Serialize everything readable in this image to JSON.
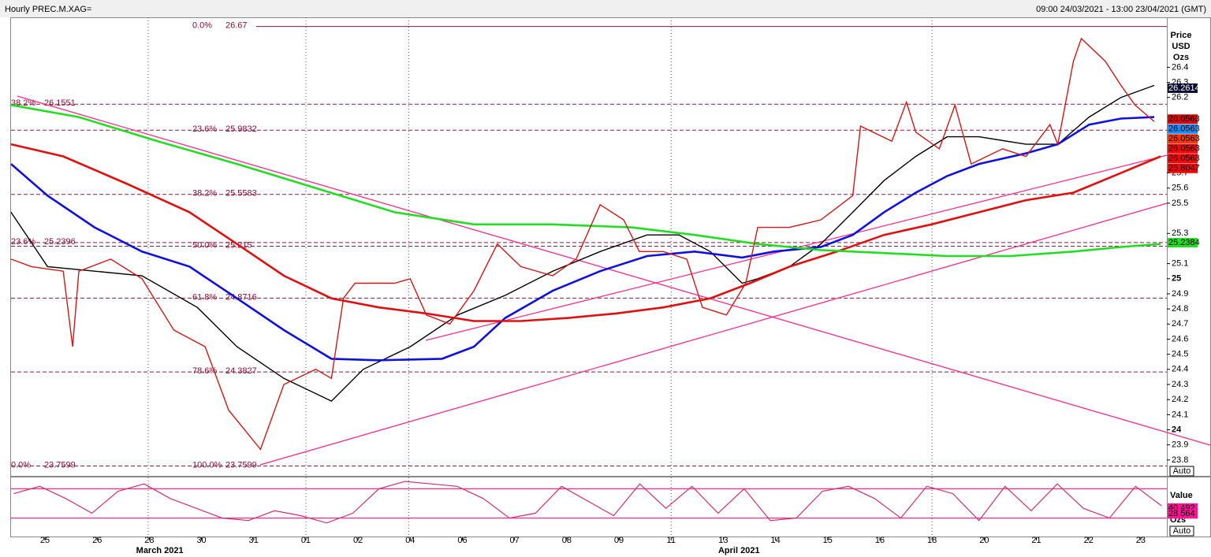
{
  "chart_data": {
    "type": "line",
    "title": "Hourly PREC.M.XAG=",
    "subtitle": "09:00 24/03/2021 - 13:00 23/04/2021 (GMT)",
    "y_axis_label": [
      "Price",
      "USD",
      "Ozs"
    ],
    "auto_label": "Auto",
    "xlim": [
      -0.65,
      21.5
    ],
    "ylim": [
      23.695,
      26.72
    ],
    "yticks": [
      26.4,
      26.3,
      26.2,
      25.7,
      25.6,
      25.5,
      25.3,
      25.1,
      25,
      24.9,
      24.8,
      24.7,
      24.6,
      24.5,
      24.4,
      24.3,
      24.2,
      24.1,
      24,
      23.9,
      23.8
    ],
    "xticks": [
      {
        "value": 0,
        "label": "25"
      },
      {
        "value": 1,
        "label": "26"
      },
      {
        "value": 2,
        "label": "28"
      },
      {
        "value": 3,
        "label": "30"
      },
      {
        "value": 4,
        "label": "31"
      },
      {
        "value": 5,
        "label": "01"
      },
      {
        "value": 6,
        "label": "02"
      },
      {
        "value": 7,
        "label": "04"
      },
      {
        "value": 8,
        "label": "06"
      },
      {
        "value": 9,
        "label": "07"
      },
      {
        "value": 10,
        "label": "08"
      },
      {
        "value": 11,
        "label": "09"
      },
      {
        "value": 12,
        "label": "11"
      },
      {
        "value": 13,
        "label": "13"
      },
      {
        "value": 14,
        "label": "14"
      },
      {
        "value": 15,
        "label": "15"
      },
      {
        "value": 16,
        "label": "16"
      },
      {
        "value": 17,
        "label": "18"
      },
      {
        "value": 18,
        "label": "20"
      },
      {
        "value": 19,
        "label": "21"
      },
      {
        "value": 20,
        "label": "22"
      },
      {
        "value": 21,
        "label": "23"
      }
    ],
    "month_labels": [
      {
        "value": 2.2,
        "label": "March 2021"
      },
      {
        "value": 13.3,
        "label": "April 2021"
      }
    ],
    "xgrid": [
      1.98,
      5,
      6.97,
      12,
      17
    ],
    "fib_levels_a": [
      {
        "pct": "0.0%",
        "value": 26.67
      },
      {
        "pct": "23.6%",
        "value": 25.9832
      },
      {
        "pct": "38.2%",
        "value": 25.5583
      },
      {
        "pct": "50.0%",
        "value": 25.215
      },
      {
        "pct": "61.8%",
        "value": 24.8716
      },
      {
        "pct": "78.6%",
        "value": 24.3827
      },
      {
        "pct": "100.0%",
        "value": 23.7599
      }
    ],
    "fib_levels_b": [
      {
        "pct": "38.2%",
        "value": 26.1551
      },
      {
        "pct": "23.6%",
        "value": 25.2396
      },
      {
        "pct": "0.0%",
        "value": 23.7599
      }
    ],
    "series": [
      {
        "color": "#d01818",
        "x": [
          -0.65,
          -0.26,
          0.35,
          0.53,
          0.65,
          1.26,
          1.86,
          2.47,
          3.07,
          3.52,
          4.13,
          4.58,
          5.19,
          5.49,
          5.72,
          5.94,
          6.7,
          7.0,
          7.31,
          7.76,
          8.22,
          8.67,
          9.12,
          9.73,
          10.18,
          10.64,
          11.09,
          11.39,
          11.85,
          12.3,
          12.6,
          13.06,
          13.43,
          13.66,
          14.27,
          14.87,
          15.48,
          15.63,
          16.23,
          16.51,
          16.69,
          17.14,
          17.44,
          17.75,
          18.35,
          18.8,
          19.26,
          19.41,
          19.71,
          19.86,
          20.32,
          20.62,
          20.89,
          21.26
        ],
        "values": [
          25.13,
          25.08,
          25.05,
          24.55,
          25.05,
          25.13,
          25.0,
          24.66,
          24.55,
          24.13,
          23.87,
          24.3,
          24.4,
          24.34,
          24.87,
          24.97,
          24.97,
          25.0,
          24.76,
          24.7,
          24.92,
          25.23,
          25.08,
          25.02,
          25.13,
          25.49,
          25.39,
          25.18,
          25.18,
          25.13,
          24.81,
          24.76,
          24.97,
          25.34,
          25.34,
          25.39,
          25.55,
          26.01,
          25.91,
          26.17,
          25.97,
          25.86,
          26.15,
          25.76,
          25.86,
          25.81,
          26.02,
          25.89,
          26.44,
          26.59,
          26.44,
          26.28,
          26.15,
          26.04
        ]
      },
      {
        "color": "#000000",
        "x": [
          -0.65,
          0.05,
          0.95,
          1.86,
          2.92,
          3.68,
          4.58,
          5.49,
          6.1,
          7.0,
          7.91,
          8.82,
          9.73,
          10.64,
          11.54,
          12.15,
          12.75,
          13.36,
          13.66,
          14.27,
          14.87,
          15.48,
          16.08,
          16.69,
          17.29,
          17.9,
          18.8,
          19.41,
          20.01,
          20.62,
          21.26
        ],
        "values": [
          25.44,
          25.08,
          25.05,
          25.02,
          24.81,
          24.55,
          24.34,
          24.19,
          24.4,
          24.55,
          24.76,
          24.89,
          25.05,
          25.18,
          25.29,
          25.29,
          25.18,
          24.97,
          25.0,
          25.08,
          25.23,
          25.44,
          25.65,
          25.81,
          25.94,
          25.94,
          25.89,
          25.89,
          26.07,
          26.2,
          26.28
        ]
      },
      {
        "color": "#1010e0",
        "x": [
          -0.65,
          0.05,
          0.95,
          1.86,
          2.77,
          3.68,
          4.58,
          5.49,
          6.4,
          7.61,
          8.22,
          8.82,
          9.73,
          10.64,
          11.54,
          12.45,
          13.36,
          13.97,
          14.87,
          15.48,
          16.08,
          16.69,
          17.29,
          17.9,
          18.8,
          19.41,
          20.01,
          20.62,
          21.26
        ],
        "values": [
          25.76,
          25.55,
          25.34,
          25.18,
          25.08,
          24.87,
          24.66,
          24.47,
          24.46,
          24.47,
          24.55,
          24.74,
          24.92,
          25.05,
          25.15,
          25.18,
          25.14,
          25.18,
          25.21,
          25.29,
          25.44,
          25.57,
          25.68,
          25.76,
          25.83,
          25.89,
          26.02,
          26.06,
          26.07
        ]
      },
      {
        "color": "#e01010",
        "x": [
          -0.65,
          0.35,
          1.56,
          2.77,
          3.68,
          4.58,
          5.49,
          6.4,
          7.31,
          8.22,
          9.12,
          10.03,
          10.94,
          11.85,
          12.75,
          13.51,
          14.27,
          15.18,
          16.08,
          16.99,
          17.9,
          18.8,
          19.71,
          20.62,
          21.38
        ],
        "values": [
          25.89,
          25.81,
          25.63,
          25.44,
          25.23,
          25.02,
          24.87,
          24.81,
          24.77,
          24.72,
          24.72,
          24.74,
          24.77,
          24.81,
          24.87,
          24.97,
          25.08,
          25.18,
          25.29,
          25.36,
          25.44,
          25.52,
          25.57,
          25.7,
          25.81
        ]
      },
      {
        "color": "#22dd22",
        "x": [
          -0.65,
          0.65,
          2.16,
          3.68,
          5.19,
          6.7,
          8.22,
          9.73,
          11.24,
          12.45,
          13.66,
          14.87,
          16.08,
          17.29,
          18.5,
          19.71,
          20.62,
          21.38
        ],
        "values": [
          26.15,
          26.07,
          25.91,
          25.76,
          25.6,
          25.44,
          25.36,
          25.36,
          25.34,
          25.29,
          25.23,
          25.19,
          25.17,
          25.15,
          25.15,
          25.18,
          25.21,
          25.23
        ]
      }
    ],
    "price_tags": [
      {
        "value": 26.2614,
        "color": "#0a0a30",
        "text_color": "#ffffff"
      },
      {
        "value": 26.0563,
        "color": "#e00000",
        "text_color": "#000000"
      },
      {
        "value": 26.0563,
        "color": "#1a8cff",
        "text_color": "#000000"
      },
      {
        "value": 26.0563,
        "color": "#ff3300",
        "text_color": "#000000"
      },
      {
        "value": 26.0563,
        "color": "#ff0000",
        "text_color": "#000000"
      },
      {
        "value": 26.0563,
        "color": "#ff0000",
        "text_color": "#000000"
      },
      {
        "value": 25.8047,
        "color": "#ff0000",
        "text_color": "#000000"
      },
      {
        "value": 25.2384,
        "color": "#22dd22",
        "text_color": "#000000"
      }
    ],
    "oscillator": {
      "label": "Value",
      "unit": "Ozs",
      "ylim": [
        0,
        100
      ],
      "bands": [
        80,
        20
      ],
      "color": "#d0306a",
      "x": [
        -0.6,
        -0.1,
        0.4,
        0.9,
        1.4,
        1.9,
        2.4,
        2.9,
        3.4,
        3.9,
        4.4,
        4.9,
        5.4,
        5.9,
        6.4,
        6.9,
        7.4,
        7.9,
        8.4,
        8.9,
        9.4,
        9.9,
        10.4,
        10.9,
        11.4,
        11.9,
        12.4,
        12.9,
        13.4,
        13.9,
        14.4,
        14.9,
        15.4,
        15.9,
        16.4,
        16.9,
        17.4,
        17.9,
        18.4,
        18.9,
        19.4,
        19.9,
        20.4,
        20.9,
        21.4
      ],
      "values": [
        70,
        85,
        60,
        30,
        75,
        90,
        60,
        40,
        20,
        15,
        35,
        25,
        10,
        30,
        80,
        95,
        90,
        85,
        60,
        20,
        30,
        85,
        55,
        25,
        90,
        40,
        85,
        30,
        80,
        15,
        20,
        75,
        85,
        60,
        20,
        85,
        70,
        15,
        85,
        35,
        90,
        40,
        20,
        85,
        45
      ],
      "tags": [
        {
          "value": 40.492,
          "color": "#ff1493"
        },
        {
          "value": 28.564,
          "color": "#ff1493"
        }
      ]
    }
  }
}
